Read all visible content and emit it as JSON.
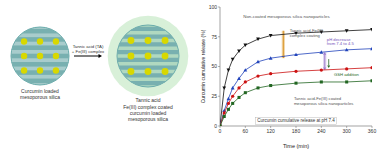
{
  "chart_data": [
    {
      "type": "diagram",
      "colors": [
        "#a8cccc",
        "#b0d8c0"
      ],
      "annotations": [
        {
          "text": "Curcumin loaded"
        },
        {
          "text": "mesoporous silica"
        },
        {
          "text": "Tannic acid (TA)"
        },
        {
          "text": "+ Fe(III) complex"
        },
        {
          "text": "Tannic acid"
        },
        {
          "text": "Fe(III) complex coated"
        },
        {
          "text": "curcumin loaded"
        },
        {
          "text": "mesoporous silica"
        }
      ]
    },
    {
      "type": "line",
      "xlabel": "Time (min)",
      "ylabel": "Curcumin cumulative release (%)",
      "x": [
        0,
        10,
        20,
        30,
        45,
        60,
        90,
        120,
        180,
        240,
        300,
        360
      ],
      "xlim": [
        0,
        360
      ],
      "ylim": [
        0,
        100
      ],
      "xticks": [
        0,
        60,
        120,
        180,
        240,
        300,
        360
      ],
      "yticks": [
        0,
        25,
        50,
        75,
        100
      ],
      "grid": false,
      "series": [
        {
          "color": "#111111",
          "marker": "triangle-down",
          "values": [
            0,
            32,
            47,
            56,
            63,
            68,
            73,
            76,
            78,
            79,
            80,
            81
          ]
        },
        {
          "color": "#2244bb",
          "marker": "triangle-up",
          "values": [
            0,
            13,
            23,
            32,
            40,
            47,
            54,
            57,
            60,
            62,
            64,
            65
          ]
        },
        {
          "color": "#cc1111",
          "marker": "circle",
          "values": [
            0,
            11,
            19,
            25,
            32,
            37,
            42,
            44,
            46,
            47,
            48,
            49
          ]
        },
        {
          "color": "#226622",
          "marker": "square",
          "values": [
            0,
            8,
            14,
            19,
            24,
            28,
            32,
            34,
            36,
            37,
            37,
            38
          ]
        }
      ],
      "ranges": [
        {
          "x": 150,
          "values": [
            57,
            80
          ],
          "color": "#d4860a"
        },
        {
          "x": 248,
          "values": [
            47,
            62
          ],
          "color": "#9977cc"
        }
      ],
      "annotations": [
        {
          "text": "Non-coated mesoporous silica nanoparticles",
          "x": 55,
          "y": 90
        },
        {
          "text": "Tannic acid-Fe(III)\ncomplex coating",
          "x": 165,
          "y": 74
        },
        {
          "text": "pH decrease\nfrom 7.4 to 4.5",
          "x": 253,
          "y": 67,
          "color": "#7755bb"
        },
        {
          "text": "GSH addition",
          "x": 270,
          "y": 45,
          "color": "#2a6a2a"
        },
        {
          "text": "Tannic acid-Fe(III) coated\nmesoporous silica nanoparticles",
          "x": 175,
          "y": 17
        },
        {
          "text": "Curcumin cumulative release at pH 7.4",
          "x": 180,
          "y": 1
        }
      ]
    }
  ]
}
